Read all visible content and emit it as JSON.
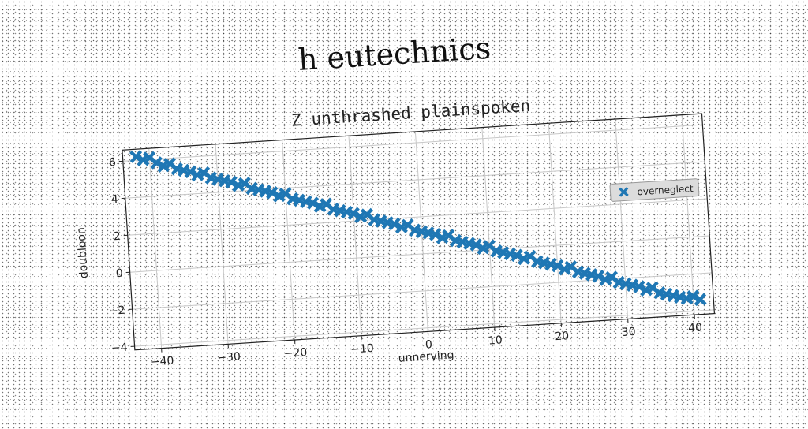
{
  "chart_data": {
    "type": "scatter",
    "suptitle": "h eutechnics",
    "title": "Z unthrashed plainspoken",
    "xlabel": "unnerving",
    "ylabel": "doubloon",
    "xlim": [
      -44,
      43
    ],
    "ylim": [
      -4.2,
      6.6
    ],
    "xticks": [
      -40,
      -30,
      -20,
      -10,
      0,
      10,
      20,
      30,
      40
    ],
    "yticks": [
      -4,
      -2,
      0,
      2,
      4,
      6
    ],
    "grid": true,
    "legend_position": "center-right",
    "marker": "X",
    "series": [
      {
        "name": "overneglect",
        "color": "#1f77b4",
        "points": [
          {
            "x": -42,
            "y": 6.2
          },
          {
            "x": -41,
            "y": 6.0
          },
          {
            "x": -40,
            "y": 6.1
          },
          {
            "x": -39,
            "y": 5.8
          },
          {
            "x": -38,
            "y": 5.6
          },
          {
            "x": -37,
            "y": 5.7
          },
          {
            "x": -36,
            "y": 5.4
          },
          {
            "x": -35,
            "y": 5.3
          },
          {
            "x": -34,
            "y": 5.2
          },
          {
            "x": -33,
            "y": 5.0
          },
          {
            "x": -32,
            "y": 5.1
          },
          {
            "x": -31,
            "y": 4.8
          },
          {
            "x": -30,
            "y": 4.7
          },
          {
            "x": -29,
            "y": 4.6
          },
          {
            "x": -28,
            "y": 4.5
          },
          {
            "x": -27,
            "y": 4.3
          },
          {
            "x": -26,
            "y": 4.4
          },
          {
            "x": -25,
            "y": 4.1
          },
          {
            "x": -24,
            "y": 4.0
          },
          {
            "x": -23,
            "y": 3.9
          },
          {
            "x": -22,
            "y": 3.8
          },
          {
            "x": -21,
            "y": 3.6
          },
          {
            "x": -20,
            "y": 3.7
          },
          {
            "x": -19,
            "y": 3.4
          },
          {
            "x": -18,
            "y": 3.3
          },
          {
            "x": -17,
            "y": 3.2
          },
          {
            "x": -16,
            "y": 3.1
          },
          {
            "x": -15,
            "y": 2.9
          },
          {
            "x": -14,
            "y": 3.0
          },
          {
            "x": -13,
            "y": 2.7
          },
          {
            "x": -12,
            "y": 2.6
          },
          {
            "x": -11,
            "y": 2.5
          },
          {
            "x": -10,
            "y": 2.4
          },
          {
            "x": -9,
            "y": 2.2
          },
          {
            "x": -8,
            "y": 2.3
          },
          {
            "x": -7,
            "y": 2.0
          },
          {
            "x": -6,
            "y": 1.9
          },
          {
            "x": -5,
            "y": 1.8
          },
          {
            "x": -4,
            "y": 1.7
          },
          {
            "x": -3,
            "y": 1.5
          },
          {
            "x": -2,
            "y": 1.6
          },
          {
            "x": -1,
            "y": 1.3
          },
          {
            "x": 0,
            "y": 1.2
          },
          {
            "x": 1,
            "y": 1.1
          },
          {
            "x": 2,
            "y": 1.0
          },
          {
            "x": 3,
            "y": 0.8
          },
          {
            "x": 4,
            "y": 0.9
          },
          {
            "x": 5,
            "y": 0.6
          },
          {
            "x": 6,
            "y": 0.5
          },
          {
            "x": 7,
            "y": 0.4
          },
          {
            "x": 8,
            "y": 0.3
          },
          {
            "x": 9,
            "y": 0.1
          },
          {
            "x": 10,
            "y": 0.2
          },
          {
            "x": 11,
            "y": -0.1
          },
          {
            "x": 12,
            "y": -0.2
          },
          {
            "x": 13,
            "y": -0.3
          },
          {
            "x": 14,
            "y": -0.4
          },
          {
            "x": 15,
            "y": -0.6
          },
          {
            "x": 16,
            "y": -0.5
          },
          {
            "x": 17,
            "y": -0.8
          },
          {
            "x": 18,
            "y": -0.9
          },
          {
            "x": 19,
            "y": -1.0
          },
          {
            "x": 20,
            "y": -1.1
          },
          {
            "x": 21,
            "y": -1.3
          },
          {
            "x": 22,
            "y": -1.2
          },
          {
            "x": 23,
            "y": -1.5
          },
          {
            "x": 24,
            "y": -1.6
          },
          {
            "x": 25,
            "y": -1.7
          },
          {
            "x": 26,
            "y": -1.8
          },
          {
            "x": 27,
            "y": -2.0
          },
          {
            "x": 28,
            "y": -1.9
          },
          {
            "x": 29,
            "y": -2.2
          },
          {
            "x": 30,
            "y": -2.3
          },
          {
            "x": 31,
            "y": -2.4
          },
          {
            "x": 32,
            "y": -2.5
          },
          {
            "x": 33,
            "y": -2.7
          },
          {
            "x": 34,
            "y": -2.6
          },
          {
            "x": 35,
            "y": -2.9
          },
          {
            "x": 36,
            "y": -3.0
          },
          {
            "x": 37,
            "y": -3.1
          },
          {
            "x": 38,
            "y": -3.2
          },
          {
            "x": 39,
            "y": -3.3
          },
          {
            "x": 40,
            "y": -3.2
          },
          {
            "x": 41,
            "y": -3.4
          }
        ]
      }
    ]
  }
}
